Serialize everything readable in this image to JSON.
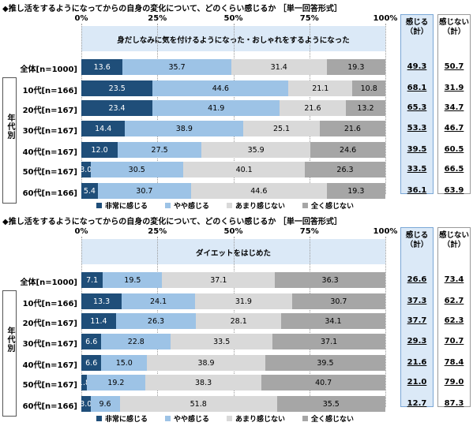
{
  "colors": {
    "very": "#1f4e79",
    "somewhat": "#9dc3e6",
    "not_much": "#d9d9d9",
    "not_at_all": "#a6a6a6",
    "band": "#dbe9f7"
  },
  "legend": [
    "非常に感じる",
    "やや感じる",
    "あまり感じない",
    "全く感じない"
  ],
  "summary_headers": {
    "feel": "感じる\n（計）",
    "not_feel": "感じない\n（計）"
  },
  "group_label": "年代別",
  "axis_ticks": [
    "0%",
    "25%",
    "50%",
    "75%",
    "100%"
  ],
  "chart_data": [
    {
      "type": "bar",
      "stacked": true,
      "orientation": "horizontal",
      "title": "◆推し活をするようになってからの自身の変化について、どのくらい感じるか ［単一回答形式］",
      "subtitle": "身だしなみに気を付けるようになった・おしゃれをするようになった",
      "categories": [
        "全体[n=1000]",
        "10代[n=166]",
        "20代[n=167]",
        "30代[n=167]",
        "40代[n=167]",
        "50代[n=167]",
        "60代[n=166]"
      ],
      "series": [
        {
          "name": "非常に感じる",
          "values": [
            13.6,
            23.5,
            23.4,
            14.4,
            12.0,
            3.0,
            5.4
          ]
        },
        {
          "name": "やや感じる",
          "values": [
            35.7,
            44.6,
            41.9,
            38.9,
            27.5,
            30.5,
            30.7
          ]
        },
        {
          "name": "あまり感じない",
          "values": [
            31.4,
            21.1,
            21.6,
            25.1,
            35.9,
            40.1,
            44.6
          ]
        },
        {
          "name": "全く感じない",
          "values": [
            19.3,
            10.8,
            13.2,
            21.6,
            24.6,
            26.3,
            19.3
          ]
        }
      ],
      "feel_total": [
        "49.3",
        "68.1",
        "65.3",
        "53.3",
        "39.5",
        "33.5",
        "36.1"
      ],
      "not_feel_total": [
        "50.7",
        "31.9",
        "34.7",
        "46.7",
        "60.5",
        "66.5",
        "63.9"
      ],
      "xlim": [
        0,
        100
      ]
    },
    {
      "type": "bar",
      "stacked": true,
      "orientation": "horizontal",
      "title": "◆推し活をするようになってからの自身の変化について、どのくらい感じるか ［単一回答形式］",
      "subtitle": "ダイエットをはじめた",
      "categories": [
        "全体[n=1000]",
        "10代[n=166]",
        "20代[n=167]",
        "30代[n=167]",
        "40代[n=167]",
        "50代[n=167]",
        "60代[n=166]"
      ],
      "series": [
        {
          "name": "非常に感じる",
          "values": [
            7.1,
            13.3,
            11.4,
            6.6,
            6.6,
            1.8,
            3.0
          ]
        },
        {
          "name": "やや感じる",
          "values": [
            19.5,
            24.1,
            26.3,
            22.8,
            15.0,
            19.2,
            9.6
          ]
        },
        {
          "name": "あまり感じない",
          "values": [
            37.1,
            31.9,
            28.1,
            33.5,
            38.9,
            38.3,
            51.8
          ]
        },
        {
          "name": "全く感じない",
          "values": [
            36.3,
            30.7,
            34.1,
            37.1,
            39.5,
            40.7,
            35.5
          ]
        }
      ],
      "feel_total": [
        "26.6",
        "37.3",
        "37.7",
        "29.3",
        "21.6",
        "21.0",
        "12.7"
      ],
      "not_feel_total": [
        "73.4",
        "62.7",
        "62.3",
        "70.7",
        "78.4",
        "79.0",
        "87.3"
      ],
      "xlim": [
        0,
        100
      ]
    }
  ]
}
